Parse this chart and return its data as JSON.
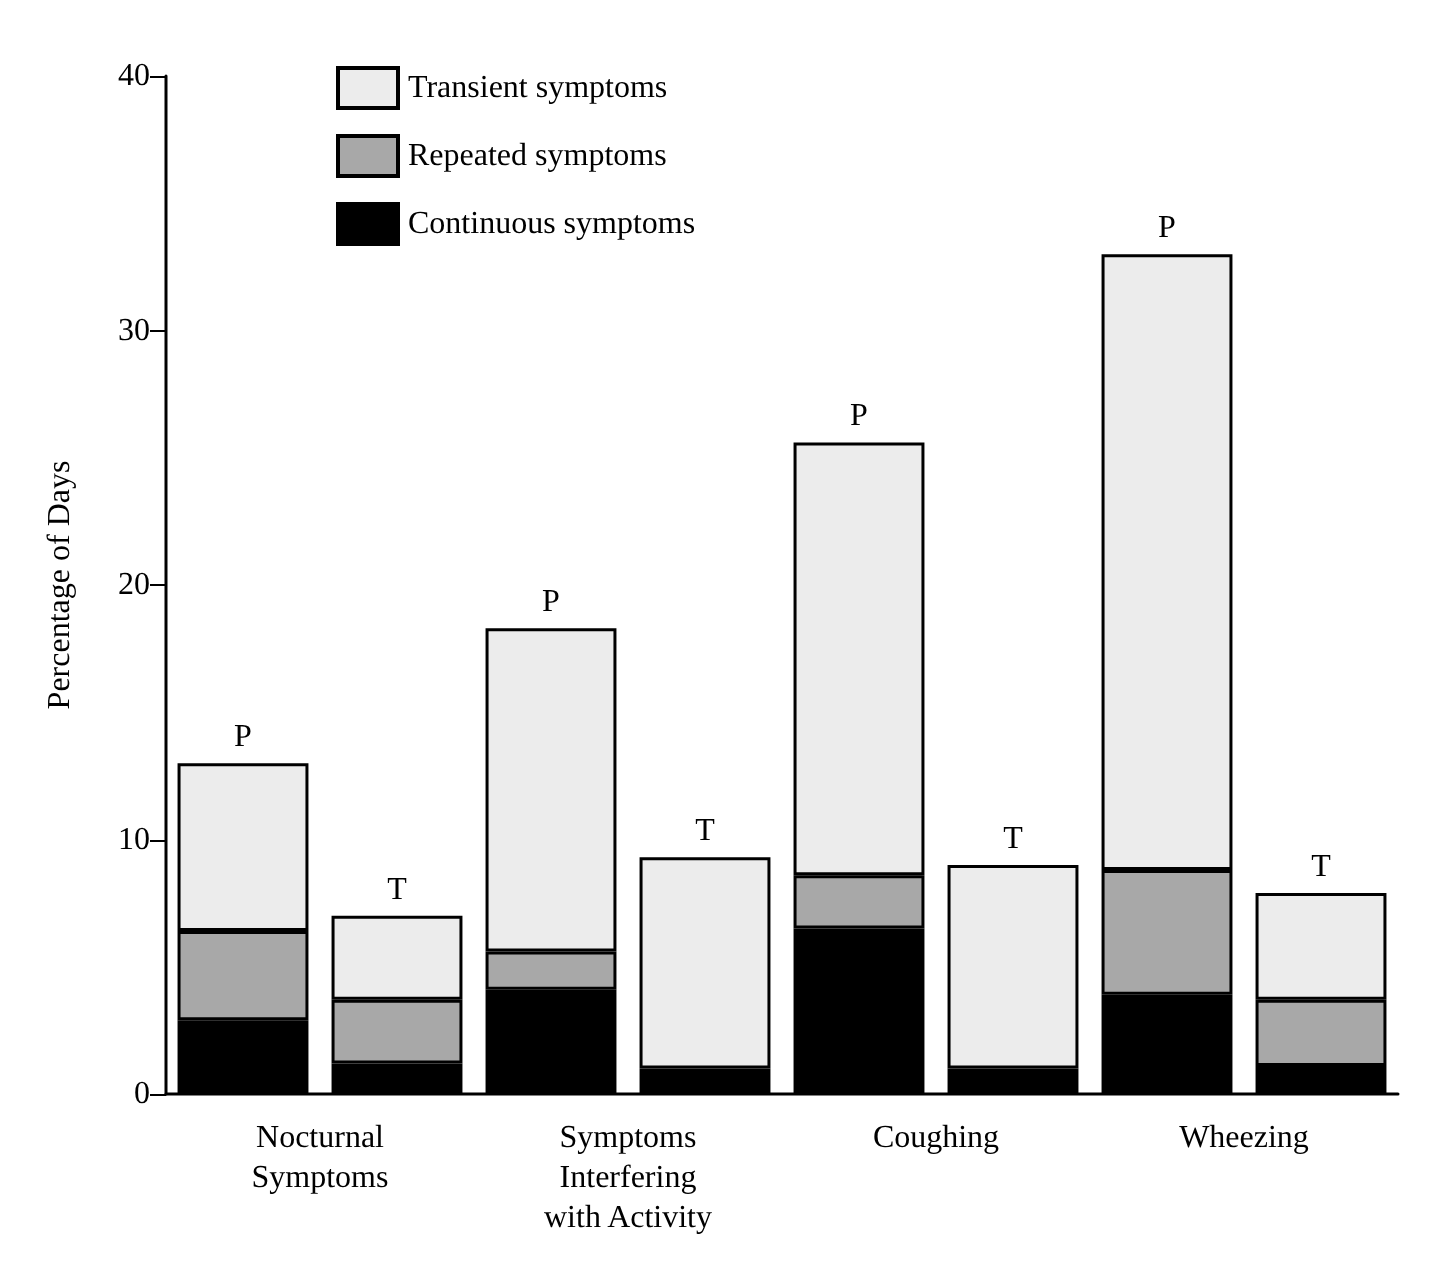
{
  "chart_data": {
    "type": "bar",
    "stacked": true,
    "ylabel": "Percentage of Days",
    "categories": [
      "P",
      "T",
      "P",
      "T",
      "P",
      "T",
      "P",
      "T"
    ],
    "series": [
      {
        "name": "Continuous symptoms",
        "color": "#000000",
        "values": [
          2.9,
          1.2,
          4.1,
          1.0,
          6.5,
          1.0,
          3.9,
          1.1
        ]
      },
      {
        "name": "Repeated symptoms",
        "color": "#a8a8a8",
        "values": [
          3.5,
          2.5,
          1.5,
          null,
          2.1,
          null,
          4.9,
          2.6
        ]
      },
      {
        "name": "Transient symptoms",
        "color": "#ececec",
        "values": [
          6.6,
          3.3,
          12.7,
          8.3,
          17.0,
          8.0,
          24.2,
          4.2
        ]
      }
    ],
    "annotations": [
      "Nocturnal\nSymptoms",
      "Symptoms\nInterfering\nwith Activity",
      "Coughing",
      "Wheezing"
    ],
    "ylim": [
      0,
      40
    ],
    "yticks": [
      0,
      10,
      20,
      30,
      40
    ],
    "grid": false,
    "legend": "top left"
  }
}
